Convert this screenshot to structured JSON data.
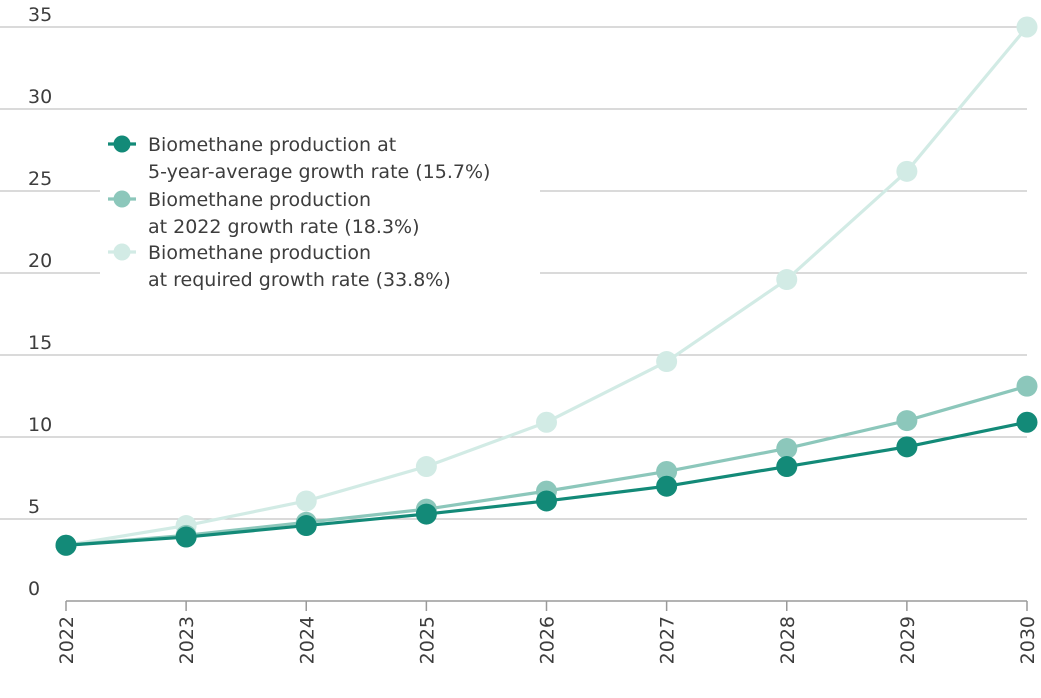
{
  "chart_data": {
    "type": "line",
    "title": "",
    "xlabel": "",
    "ylabel": "",
    "categories": [
      "2022",
      "2023",
      "2024",
      "2025",
      "2026",
      "2027",
      "2028",
      "2029",
      "2030"
    ],
    "ylim": [
      0,
      35
    ],
    "yticks": [
      0,
      5,
      10,
      15,
      20,
      25,
      30,
      35
    ],
    "grid": "horizontal",
    "legend_position": "top-left",
    "series": [
      {
        "name": "Biomethane production at 5-year-average growth rate (15.7%)",
        "legend_lines": [
          "Biomethane production at",
          "5-year-average growth rate (15.7%)"
        ],
        "color": "#138a78",
        "values": [
          3.4,
          3.9,
          4.6,
          5.3,
          6.1,
          7.0,
          8.2,
          9.4,
          10.9
        ]
      },
      {
        "name": "Biomethane production at 2022 growth rate (18.3%)",
        "legend_lines": [
          "Biomethane production",
          "at 2022 growth rate (18.3%)"
        ],
        "color": "#8cc7bb",
        "values": [
          3.4,
          4.0,
          4.8,
          5.6,
          6.7,
          7.9,
          9.3,
          11.0,
          13.1
        ]
      },
      {
        "name": "Biomethane production at required growth rate (33.8%)",
        "legend_lines": [
          "Biomethane production",
          "at required growth rate (33.8%)"
        ],
        "color": "#d2ebe5",
        "values": [
          3.4,
          4.6,
          6.1,
          8.2,
          10.9,
          14.6,
          19.6,
          26.2,
          35.0
        ]
      }
    ]
  }
}
